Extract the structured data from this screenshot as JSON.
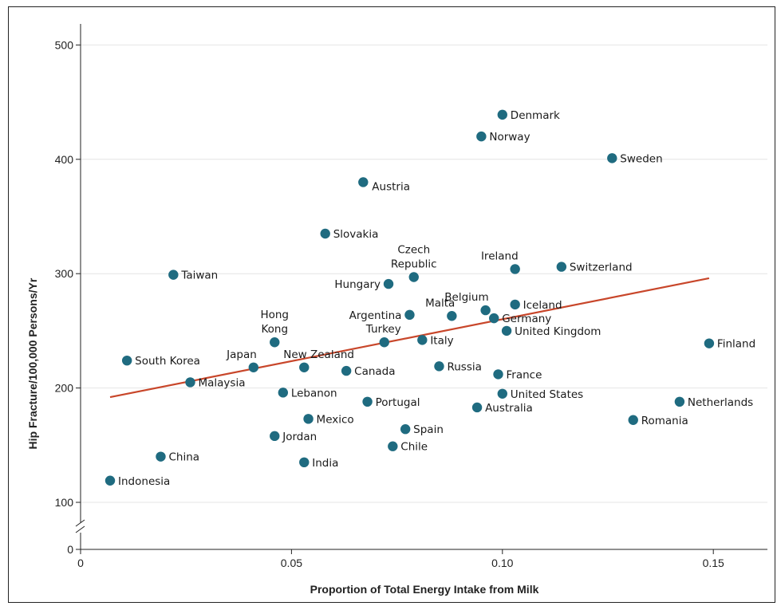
{
  "chart_data": {
    "type": "scatter",
    "xlabel": "Proportion of Total Energy Intake from Milk",
    "ylabel": "Hip Fracture/100,000 Persons/Yr",
    "xlim": [
      0,
      0.163
    ],
    "ylim": [
      0,
      520
    ],
    "y_axis_break": true,
    "grid": "horizontal",
    "x_ticks": [
      {
        "value": 0,
        "label": "0"
      },
      {
        "value": 0.05,
        "label": "0.05"
      },
      {
        "value": 0.1,
        "label": "0.10"
      },
      {
        "value": 0.15,
        "label": "0.15"
      }
    ],
    "y_ticks": [
      {
        "value": 0,
        "label": "0"
      },
      {
        "value": 100,
        "label": "100"
      },
      {
        "value": 200,
        "label": "200"
      },
      {
        "value": 300,
        "label": "300"
      },
      {
        "value": 400,
        "label": "400"
      },
      {
        "value": 500,
        "label": "500"
      }
    ],
    "point_color": "#1f6b80",
    "trend_color": "#c8462a",
    "trend_line": {
      "x": [
        0.007,
        0.149
      ],
      "y": [
        192,
        296
      ]
    },
    "points": [
      {
        "country": "Denmark",
        "x": 0.1,
        "y": 439,
        "label_pos": "right"
      },
      {
        "country": "Norway",
        "x": 0.095,
        "y": 420,
        "label_pos": "right"
      },
      {
        "country": "Sweden",
        "x": 0.126,
        "y": 401,
        "label_pos": "right"
      },
      {
        "country": "Austria",
        "x": 0.067,
        "y": 380,
        "label_pos": "right-below"
      },
      {
        "country": "Slovakia",
        "x": 0.058,
        "y": 335,
        "label_pos": "right"
      },
      {
        "country": "Czech Republic",
        "x": 0.079,
        "y": 297,
        "label_pos": "above-two"
      },
      {
        "country": "Ireland",
        "x": 0.103,
        "y": 304,
        "label_pos": "above-left"
      },
      {
        "country": "Switzerland",
        "x": 0.114,
        "y": 306,
        "label_pos": "right"
      },
      {
        "country": "Taiwan",
        "x": 0.022,
        "y": 299,
        "label_pos": "right"
      },
      {
        "country": "Hungary",
        "x": 0.073,
        "y": 291,
        "label_pos": "left"
      },
      {
        "country": "Iceland",
        "x": 0.103,
        "y": 273,
        "label_pos": "right"
      },
      {
        "country": "Belgium",
        "x": 0.096,
        "y": 268,
        "label_pos": "above-left"
      },
      {
        "country": "Argentina",
        "x": 0.078,
        "y": 264,
        "label_pos": "left"
      },
      {
        "country": "Malta",
        "x": 0.088,
        "y": 263,
        "label_pos": "above-left"
      },
      {
        "country": "Germany",
        "x": 0.098,
        "y": 261,
        "label_pos": "right"
      },
      {
        "country": "United Kingdom",
        "x": 0.101,
        "y": 250,
        "label_pos": "right"
      },
      {
        "country": "Hong Kong",
        "x": 0.046,
        "y": 240,
        "label_pos": "above-two"
      },
      {
        "country": "Turkey",
        "x": 0.072,
        "y": 240,
        "label_pos": "above"
      },
      {
        "country": "Italy",
        "x": 0.081,
        "y": 242,
        "label_pos": "right"
      },
      {
        "country": "Finland",
        "x": 0.149,
        "y": 239,
        "label_pos": "right"
      },
      {
        "country": "South Korea",
        "x": 0.011,
        "y": 224,
        "label_pos": "right"
      },
      {
        "country": "Japan",
        "x": 0.041,
        "y": 218,
        "label_pos": "above-left"
      },
      {
        "country": "New Zealand",
        "x": 0.053,
        "y": 218,
        "label_pos": "above-right"
      },
      {
        "country": "Russia",
        "x": 0.085,
        "y": 219,
        "label_pos": "right"
      },
      {
        "country": "Canada",
        "x": 0.063,
        "y": 215,
        "label_pos": "right"
      },
      {
        "country": "France",
        "x": 0.099,
        "y": 212,
        "label_pos": "right"
      },
      {
        "country": "Malaysia",
        "x": 0.026,
        "y": 205,
        "label_pos": "right"
      },
      {
        "country": "Lebanon",
        "x": 0.048,
        "y": 196,
        "label_pos": "right"
      },
      {
        "country": "United States",
        "x": 0.1,
        "y": 195,
        "label_pos": "right"
      },
      {
        "country": "Portugal",
        "x": 0.068,
        "y": 188,
        "label_pos": "right"
      },
      {
        "country": "Netherlands",
        "x": 0.142,
        "y": 188,
        "label_pos": "right"
      },
      {
        "country": "Australia",
        "x": 0.094,
        "y": 183,
        "label_pos": "right"
      },
      {
        "country": "Mexico",
        "x": 0.054,
        "y": 173,
        "label_pos": "right"
      },
      {
        "country": "Romania",
        "x": 0.131,
        "y": 172,
        "label_pos": "right"
      },
      {
        "country": "Spain",
        "x": 0.077,
        "y": 164,
        "label_pos": "right"
      },
      {
        "country": "Jordan",
        "x": 0.046,
        "y": 158,
        "label_pos": "right"
      },
      {
        "country": "Chile",
        "x": 0.074,
        "y": 149,
        "label_pos": "right"
      },
      {
        "country": "China",
        "x": 0.019,
        "y": 140,
        "label_pos": "right"
      },
      {
        "country": "India",
        "x": 0.053,
        "y": 135,
        "label_pos": "right"
      },
      {
        "country": "Indonesia",
        "x": 0.007,
        "y": 119,
        "label_pos": "right"
      }
    ]
  }
}
